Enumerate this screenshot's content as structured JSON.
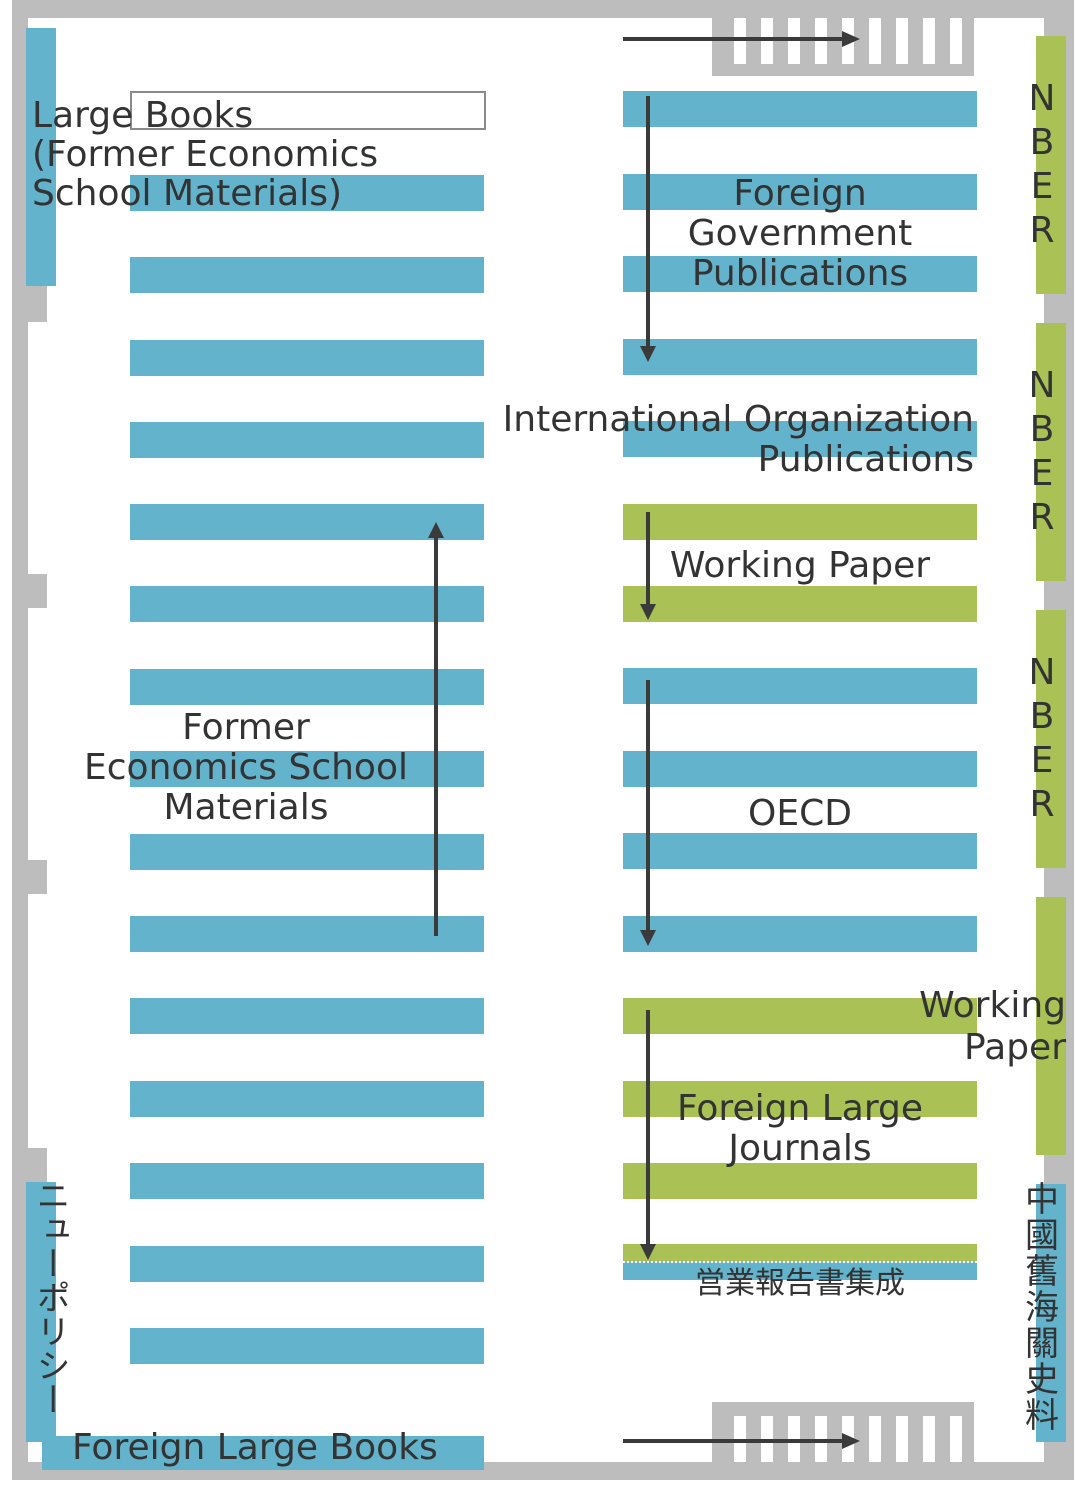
{
  "labels": {
    "large_books": "Large Books\n(Former Economics\nSchool Materials)",
    "former_econ": "Former\nEconomics School\nMaterials",
    "foreign_large_books": "Foreign Large Books",
    "new_policy": "ニューポリシー",
    "foreign_gov": "Foreign\nGovernment\nPublications",
    "intl_org": "International Organization\nPublications",
    "working_paper_1": "Working Paper",
    "oecd": "OECD",
    "foreign_large_journals": "Foreign Large\nJournals",
    "eigyo": "営業報告書集成",
    "nber_1": "NBER",
    "nber_2": "NBER",
    "nber_3": "NBER",
    "working_paper_2": "Working\nPaper",
    "chinese_customs": "中國舊海關史料"
  },
  "colors": {
    "blue_shelf": "#62b3cb",
    "green_shelf": "#a9c155",
    "wall": "#bdbdbd",
    "arrow": "#3a3a3a"
  },
  "icons": {
    "stairs": "stairs-icon",
    "arrow": "direction-arrow-icon"
  }
}
